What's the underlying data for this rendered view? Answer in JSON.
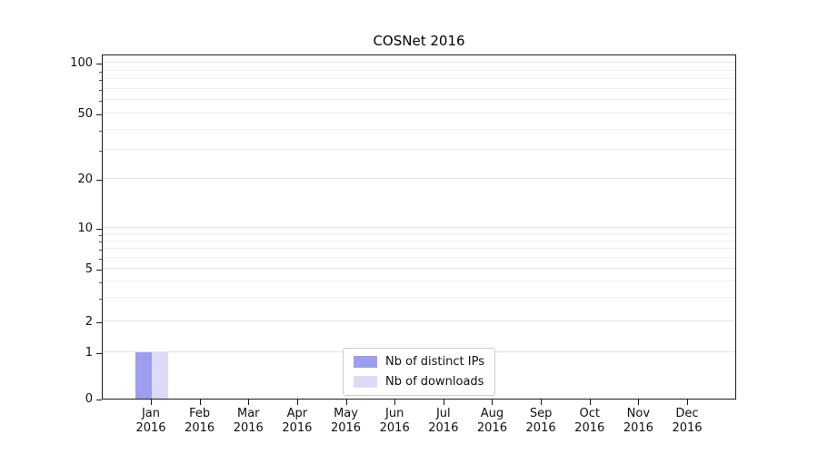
{
  "chart_data": {
    "type": "bar",
    "title": "COSNet 2016",
    "categories": [
      "Jan 2016",
      "Feb 2016",
      "Mar 2016",
      "Apr 2016",
      "May 2016",
      "Jun 2016",
      "Jul 2016",
      "Aug 2016",
      "Sep 2016",
      "Oct 2016",
      "Nov 2016",
      "Dec 2016"
    ],
    "series": [
      {
        "name": "Nb of distinct IPs",
        "color": "#9e9ef0",
        "values": [
          1,
          0,
          0,
          0,
          0,
          0,
          0,
          0,
          0,
          0,
          0,
          0
        ]
      },
      {
        "name": "Nb of downloads",
        "color": "#dbdbf8",
        "values": [
          1,
          0,
          0,
          0,
          0,
          0,
          0,
          0,
          0,
          0,
          0,
          0
        ]
      }
    ],
    "y_axis": {
      "scale": "symlog",
      "ticks": [
        0,
        1,
        2,
        5,
        10,
        20,
        50,
        100
      ],
      "range": [
        0,
        110
      ]
    },
    "grid": true,
    "legend": {
      "position": "bottom-center"
    }
  }
}
